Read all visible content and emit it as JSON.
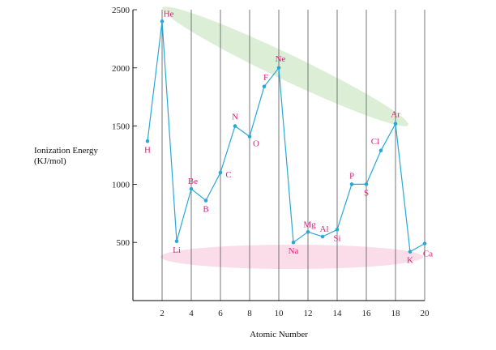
{
  "chart_data": {
    "type": "line",
    "xlabel": "Atomic Number",
    "ylabel_lines": [
      "Ionization Energy",
      "(KJ/mol)"
    ],
    "xlim": [
      0,
      20
    ],
    "ylim": [
      0,
      2500
    ],
    "x_ticks": [
      2,
      4,
      6,
      8,
      10,
      12,
      14,
      16,
      18,
      20
    ],
    "y_ticks": [
      500,
      1000,
      1500,
      2000,
      2500
    ],
    "grid": "vertical",
    "line_color": "#29a8d8",
    "label_color": "#e0207a",
    "highlight_colors": {
      "upper_band": "#dcefd6",
      "lower_band": "#fbdde9"
    },
    "series": [
      {
        "points": [
          {
            "x": 1,
            "y": 1370,
            "label": "H"
          },
          {
            "x": 2,
            "y": 2400,
            "label": "He"
          },
          {
            "x": 3,
            "y": 510,
            "label": "Li"
          },
          {
            "x": 4,
            "y": 960,
            "label": "Be"
          },
          {
            "x": 5,
            "y": 860,
            "label": "B"
          },
          {
            "x": 6,
            "y": 1100,
            "label": "C"
          },
          {
            "x": 7,
            "y": 1500,
            "label": "N"
          },
          {
            "x": 8,
            "y": 1410,
            "label": "O"
          },
          {
            "x": 9,
            "y": 1840,
            "label": "F"
          },
          {
            "x": 10,
            "y": 2000,
            "label": "Ne"
          },
          {
            "x": 11,
            "y": 500,
            "label": "Na"
          },
          {
            "x": 12,
            "y": 590,
            "label": "Mg"
          },
          {
            "x": 13,
            "y": 550,
            "label": "Al"
          },
          {
            "x": 14,
            "y": 610,
            "label": "Si"
          },
          {
            "x": 15,
            "y": 1000,
            "label": "P"
          },
          {
            "x": 16,
            "y": 1000,
            "label": "S"
          },
          {
            "x": 17,
            "y": 1290,
            "label": "Cl"
          },
          {
            "x": 18,
            "y": 1520,
            "label": "Ar"
          },
          {
            "x": 19,
            "y": 420,
            "label": "K"
          },
          {
            "x": 20,
            "y": 490,
            "label": "Ca"
          }
        ]
      }
    ]
  }
}
